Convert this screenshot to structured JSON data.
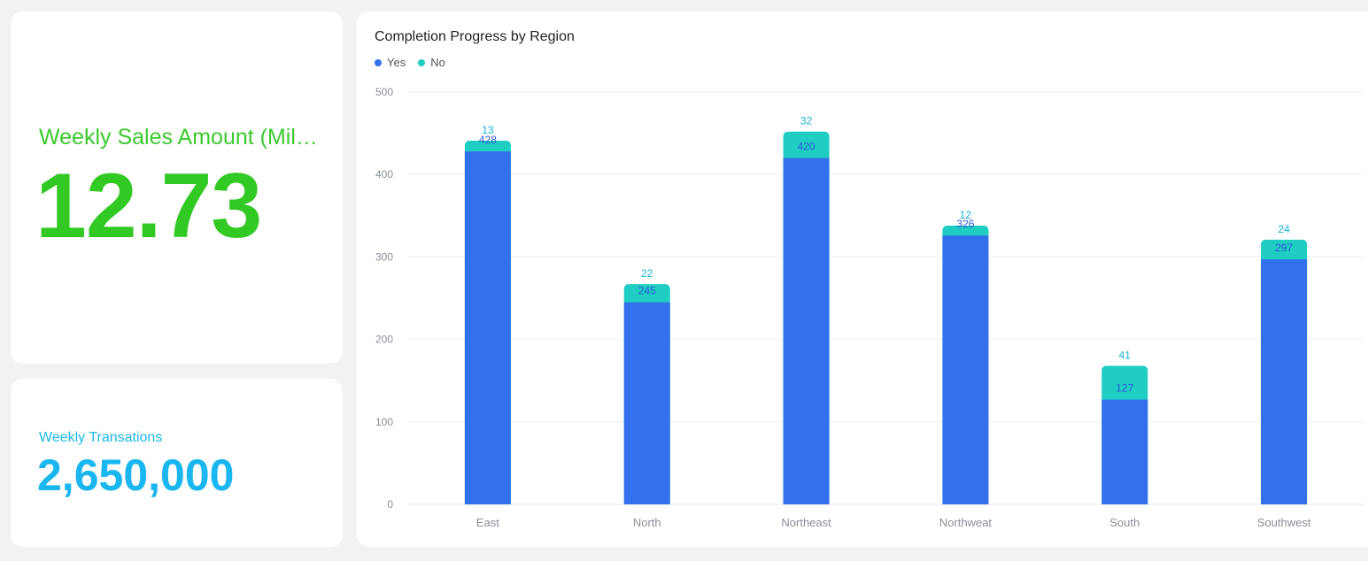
{
  "kpis": {
    "sales": {
      "label": "Weekly Sales Amount (Milli…",
      "value": "12.73",
      "color": "#33c924"
    },
    "transactions": {
      "label": "Weekly Transations",
      "value": "2,650,000",
      "color": "#19b6f0"
    }
  },
  "chart_data": {
    "type": "bar",
    "stacked": true,
    "title": "Completion Progress by Region",
    "xlabel": "",
    "ylabel": "",
    "ylim": [
      0,
      500
    ],
    "yticks": [
      0,
      100,
      200,
      300,
      400,
      500
    ],
    "grid": true,
    "legend_position": "top-left",
    "categories": [
      "East",
      "North",
      "Northeast",
      "Northweat",
      "South",
      "Southwest"
    ],
    "series": [
      {
        "name": "Yes",
        "color": "#3370eb",
        "label_color": "#2f5ad6",
        "values": [
          428,
          245,
          420,
          326,
          127,
          297
        ]
      },
      {
        "name": "No",
        "color": "#1fcdc3",
        "label_color": "#17b3d6",
        "values": [
          13,
          22,
          32,
          12,
          41,
          24
        ]
      }
    ]
  }
}
